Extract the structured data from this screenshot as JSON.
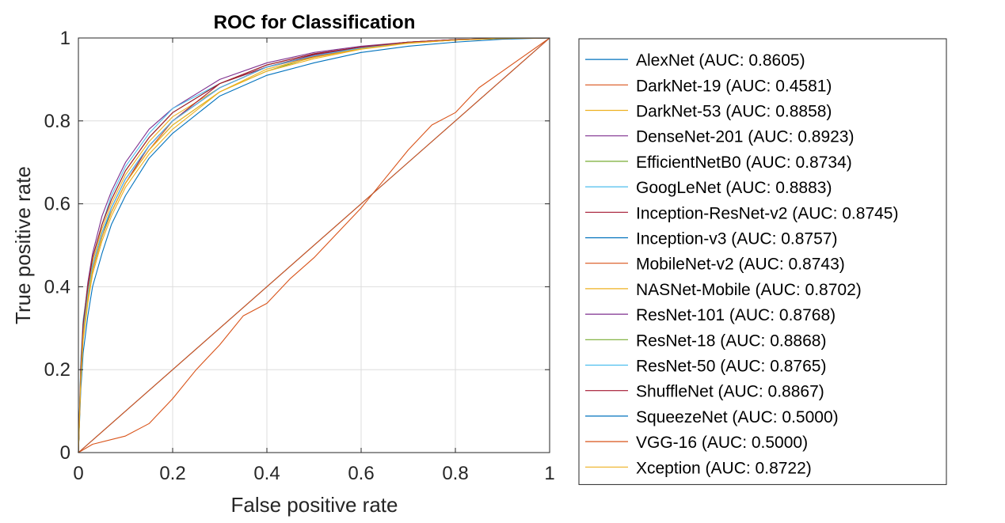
{
  "chart_data": {
    "type": "line",
    "title": "ROC for Classification",
    "xlabel": "False positive rate",
    "ylabel": "True positive rate",
    "xlim": [
      0,
      1
    ],
    "ylim": [
      0,
      1
    ],
    "xticks": [
      0,
      0.2,
      0.4,
      0.6,
      0.8,
      1
    ],
    "yticks": [
      0,
      0.2,
      0.4,
      0.6,
      0.8,
      1
    ],
    "xtick_labels": [
      "0",
      "0.2",
      "0.4",
      "0.6",
      "0.8",
      "1"
    ],
    "ytick_labels": [
      "0",
      "0.2",
      "0.4",
      "0.6",
      "0.8",
      "1"
    ],
    "grid": true,
    "legend_position": "outside-right",
    "series": [
      {
        "name": "AlexNet (AUC: 0.8605)",
        "color": "#0072BD",
        "x": [
          0,
          0.005,
          0.01,
          0.02,
          0.03,
          0.05,
          0.07,
          0.1,
          0.15,
          0.2,
          0.3,
          0.4,
          0.5,
          0.6,
          0.7,
          0.8,
          0.9,
          1
        ],
        "y": [
          0,
          0.15,
          0.24,
          0.33,
          0.4,
          0.48,
          0.55,
          0.62,
          0.71,
          0.77,
          0.86,
          0.91,
          0.94,
          0.965,
          0.98,
          0.99,
          0.997,
          1
        ]
      },
      {
        "name": "DarkNet-19 (AUC: 0.4581)",
        "color": "#D95319",
        "x": [
          0,
          0.03,
          0.1,
          0.15,
          0.2,
          0.25,
          0.3,
          0.35,
          0.4,
          0.45,
          0.5,
          0.55,
          0.6,
          0.65,
          0.7,
          0.75,
          0.8,
          0.85,
          0.9,
          0.95,
          1
        ],
        "y": [
          0,
          0.02,
          0.04,
          0.07,
          0.13,
          0.2,
          0.26,
          0.33,
          0.36,
          0.42,
          0.47,
          0.53,
          0.59,
          0.66,
          0.73,
          0.79,
          0.82,
          0.88,
          0.92,
          0.96,
          1
        ]
      },
      {
        "name": "DarkNet-53 (AUC: 0.8858)",
        "color": "#EDB120",
        "x": [
          0,
          0.005,
          0.01,
          0.02,
          0.03,
          0.05,
          0.07,
          0.1,
          0.15,
          0.2,
          0.3,
          0.4,
          0.5,
          0.6,
          0.7,
          0.8,
          0.9,
          1
        ],
        "y": [
          0,
          0.2,
          0.3,
          0.39,
          0.46,
          0.54,
          0.6,
          0.67,
          0.75,
          0.81,
          0.88,
          0.93,
          0.96,
          0.975,
          0.99,
          0.995,
          0.999,
          1
        ]
      },
      {
        "name": "DenseNet-201 (AUC: 0.8923)",
        "color": "#7E2F8E",
        "x": [
          0,
          0.005,
          0.01,
          0.02,
          0.03,
          0.05,
          0.07,
          0.1,
          0.15,
          0.2,
          0.3,
          0.4,
          0.5,
          0.6,
          0.7,
          0.8,
          0.9,
          1
        ],
        "y": [
          0,
          0.21,
          0.31,
          0.41,
          0.48,
          0.57,
          0.63,
          0.7,
          0.78,
          0.83,
          0.9,
          0.94,
          0.965,
          0.98,
          0.99,
          0.996,
          0.999,
          1
        ]
      },
      {
        "name": "EfficientNetB0 (AUC: 0.8734)",
        "color": "#77AC30",
        "x": [
          0,
          0.005,
          0.01,
          0.02,
          0.03,
          0.05,
          0.07,
          0.1,
          0.15,
          0.2,
          0.3,
          0.4,
          0.5,
          0.6,
          0.7,
          0.8,
          0.9,
          1
        ],
        "y": [
          0,
          0.18,
          0.28,
          0.37,
          0.44,
          0.52,
          0.58,
          0.65,
          0.73,
          0.79,
          0.87,
          0.92,
          0.955,
          0.975,
          0.988,
          0.995,
          0.999,
          1
        ]
      },
      {
        "name": "GoogLeNet (AUC: 0.8883)",
        "color": "#4DBEEE",
        "x": [
          0,
          0.005,
          0.01,
          0.02,
          0.03,
          0.05,
          0.07,
          0.1,
          0.15,
          0.2,
          0.3,
          0.4,
          0.5,
          0.6,
          0.7,
          0.8,
          0.9,
          1
        ],
        "y": [
          0,
          0.22,
          0.32,
          0.4,
          0.47,
          0.55,
          0.62,
          0.69,
          0.77,
          0.83,
          0.89,
          0.93,
          0.96,
          0.978,
          0.99,
          0.996,
          0.999,
          1
        ]
      },
      {
        "name": "Inception-ResNet-v2 (AUC: 0.8745)",
        "color": "#A2142F",
        "x": [
          0,
          0.005,
          0.01,
          0.02,
          0.03,
          0.05,
          0.07,
          0.1,
          0.15,
          0.2,
          0.3,
          0.4,
          0.5,
          0.6,
          0.7,
          0.8,
          0.9,
          1
        ],
        "y": [
          0,
          0.18,
          0.28,
          0.37,
          0.44,
          0.52,
          0.58,
          0.65,
          0.74,
          0.8,
          0.89,
          0.93,
          0.96,
          0.978,
          0.99,
          0.996,
          0.999,
          1
        ]
      },
      {
        "name": "Inception-v3 (AUC: 0.8757)",
        "color": "#0072BD",
        "x": [
          0,
          0.005,
          0.01,
          0.02,
          0.03,
          0.05,
          0.07,
          0.1,
          0.15,
          0.2,
          0.3,
          0.4,
          0.5,
          0.6,
          0.7,
          0.8,
          0.9,
          1
        ],
        "y": [
          0,
          0.18,
          0.28,
          0.37,
          0.44,
          0.52,
          0.59,
          0.66,
          0.74,
          0.8,
          0.88,
          0.93,
          0.955,
          0.975,
          0.988,
          0.995,
          0.999,
          1
        ]
      },
      {
        "name": "MobileNet-v2 (AUC: 0.8743)",
        "color": "#D95319",
        "x": [
          0,
          0.005,
          0.01,
          0.02,
          0.03,
          0.05,
          0.07,
          0.1,
          0.15,
          0.2,
          0.3,
          0.4,
          0.5,
          0.6,
          0.7,
          0.8,
          0.9,
          1
        ],
        "y": [
          0,
          0.18,
          0.28,
          0.37,
          0.44,
          0.52,
          0.58,
          0.65,
          0.73,
          0.8,
          0.88,
          0.93,
          0.955,
          0.975,
          0.988,
          0.995,
          0.999,
          1
        ]
      },
      {
        "name": "NASNet-Mobile (AUC: 0.8702)",
        "color": "#EDB120",
        "x": [
          0,
          0.005,
          0.01,
          0.02,
          0.03,
          0.05,
          0.07,
          0.1,
          0.15,
          0.2,
          0.3,
          0.4,
          0.5,
          0.6,
          0.7,
          0.8,
          0.9,
          1
        ],
        "y": [
          0,
          0.17,
          0.27,
          0.36,
          0.43,
          0.51,
          0.57,
          0.64,
          0.72,
          0.78,
          0.87,
          0.92,
          0.95,
          0.973,
          0.987,
          0.995,
          0.999,
          1
        ]
      },
      {
        "name": "ResNet-101 (AUC: 0.8768)",
        "color": "#7E2F8E",
        "x": [
          0,
          0.005,
          0.01,
          0.02,
          0.03,
          0.05,
          0.07,
          0.1,
          0.15,
          0.2,
          0.3,
          0.4,
          0.5,
          0.6,
          0.7,
          0.8,
          0.9,
          1
        ],
        "y": [
          0,
          0.19,
          0.29,
          0.38,
          0.45,
          0.53,
          0.59,
          0.66,
          0.74,
          0.8,
          0.88,
          0.93,
          0.958,
          0.977,
          0.989,
          0.996,
          0.999,
          1
        ]
      },
      {
        "name": "ResNet-18 (AUC: 0.8868)",
        "color": "#77AC30",
        "x": [
          0,
          0.005,
          0.01,
          0.02,
          0.03,
          0.05,
          0.07,
          0.1,
          0.15,
          0.2,
          0.3,
          0.4,
          0.5,
          0.6,
          0.7,
          0.8,
          0.9,
          1
        ],
        "y": [
          0,
          0.2,
          0.31,
          0.4,
          0.47,
          0.55,
          0.61,
          0.68,
          0.76,
          0.82,
          0.89,
          0.935,
          0.962,
          0.978,
          0.99,
          0.996,
          0.999,
          1
        ]
      },
      {
        "name": "ResNet-50 (AUC: 0.8765)",
        "color": "#4DBEEE",
        "x": [
          0,
          0.005,
          0.01,
          0.02,
          0.03,
          0.05,
          0.07,
          0.1,
          0.15,
          0.2,
          0.3,
          0.4,
          0.5,
          0.6,
          0.7,
          0.8,
          0.9,
          1
        ],
        "y": [
          0,
          0.19,
          0.29,
          0.38,
          0.45,
          0.53,
          0.59,
          0.66,
          0.74,
          0.8,
          0.88,
          0.93,
          0.957,
          0.976,
          0.989,
          0.996,
          0.999,
          1
        ]
      },
      {
        "name": "ShuffleNet (AUC: 0.8867)",
        "color": "#A2142F",
        "x": [
          0,
          0.005,
          0.01,
          0.02,
          0.03,
          0.05,
          0.07,
          0.1,
          0.15,
          0.2,
          0.3,
          0.4,
          0.5,
          0.6,
          0.7,
          0.8,
          0.9,
          1
        ],
        "y": [
          0,
          0.2,
          0.31,
          0.4,
          0.47,
          0.55,
          0.61,
          0.68,
          0.76,
          0.82,
          0.89,
          0.935,
          0.962,
          0.978,
          0.99,
          0.996,
          0.999,
          1
        ]
      },
      {
        "name": "SqueezeNet (AUC: 0.5000)",
        "color": "#0072BD",
        "x": [
          0,
          1
        ],
        "y": [
          0,
          1
        ]
      },
      {
        "name": "VGG-16 (AUC: 0.5000)",
        "color": "#D95319",
        "x": [
          0,
          1
        ],
        "y": [
          0,
          1
        ]
      },
      {
        "name": "Xception (AUC: 0.8722)",
        "color": "#EDB120",
        "x": [
          0,
          0.005,
          0.01,
          0.02,
          0.03,
          0.05,
          0.07,
          0.1,
          0.15,
          0.2,
          0.3,
          0.4,
          0.5,
          0.6,
          0.7,
          0.8,
          0.9,
          1
        ],
        "y": [
          0,
          0.18,
          0.28,
          0.37,
          0.44,
          0.52,
          0.58,
          0.65,
          0.73,
          0.79,
          0.87,
          0.925,
          0.953,
          0.974,
          0.988,
          0.995,
          0.999,
          1
        ]
      }
    ]
  }
}
